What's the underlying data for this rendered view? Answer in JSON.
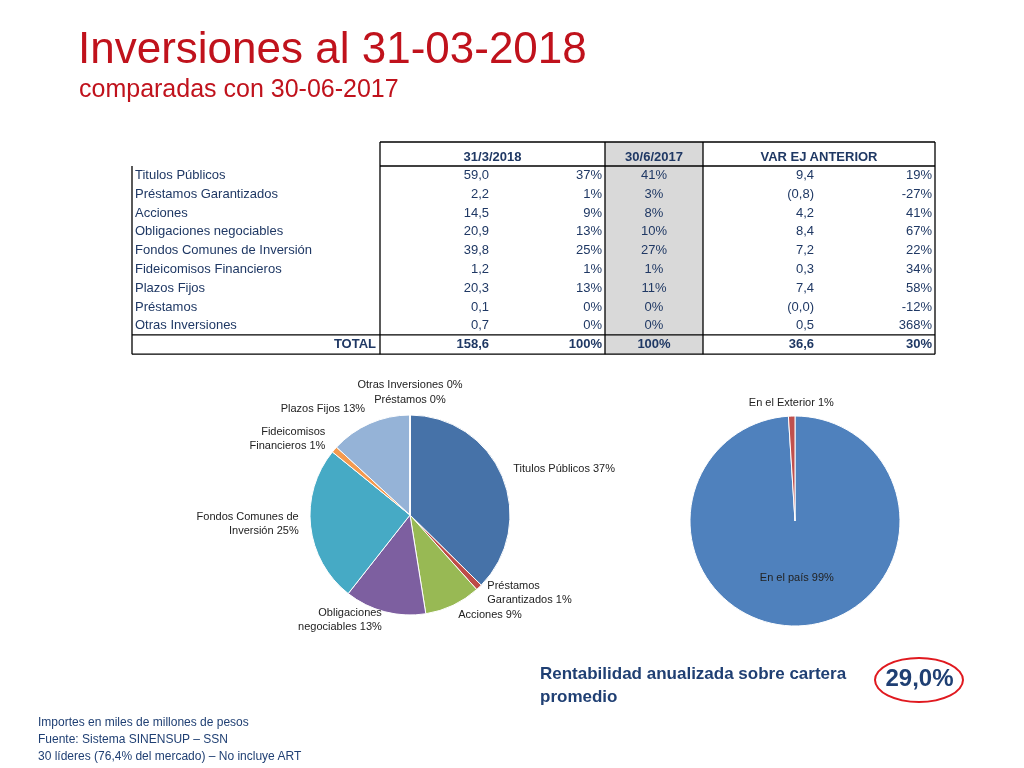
{
  "chart_data": [
    {
      "type": "other",
      "title": "Inversiones al 31-03-2018",
      "subtitle": "comparadas con 30-06-2017",
      "categories": [
        "Titulos Públicos",
        "Préstamos Garantizados",
        "Acciones",
        "Obligaciones negociables",
        "Fondos Comunes de Inversión",
        "Fideicomisos Financieros",
        "Plazos Fijos",
        "Préstamos",
        "Otras Inversiones",
        "TOTAL"
      ],
      "series": [
        {
          "name": "31/3/2018",
          "values": [
            59.0,
            2.2,
            14.5,
            20.9,
            39.8,
            1.2,
            20.3,
            0.1,
            0.7,
            158.6
          ],
          "value_labels": [
            "59,0",
            "2,2",
            "14,5",
            "20,9",
            "39,8",
            "1,2",
            "20,3",
            "0,1",
            "0,7",
            "158,6"
          ]
        },
        {
          "values": [
            37,
            1,
            9,
            13,
            25,
            1,
            13,
            0,
            0,
            100
          ],
          "value_labels": [
            "37%",
            "1%",
            "9%",
            "13%",
            "25%",
            "1%",
            "13%",
            "0%",
            "0%",
            "100%"
          ]
        },
        {
          "name": "30/6/2017",
          "values": [
            41,
            3,
            8,
            10,
            27,
            1,
            11,
            0,
            0,
            100
          ],
          "value_labels": [
            "41%",
            "3%",
            "8%",
            "10%",
            "27%",
            "1%",
            "11%",
            "0%",
            "0%",
            "100%"
          ]
        },
        {
          "name": "VAR EJ ANTERIOR",
          "values": [
            9.4,
            -0.8,
            4.2,
            8.4,
            7.2,
            0.3,
            7.4,
            0,
            0.5,
            36.6
          ],
          "value_labels": [
            "9,4",
            "(0,8)",
            "4,2",
            "8,4",
            "7,2",
            "0,3",
            "7,4",
            "(0,0)",
            "0,5",
            "36,6"
          ]
        },
        {
          "values": [
            19,
            -27,
            41,
            67,
            22,
            34,
            58,
            -12,
            368,
            30
          ],
          "value_labels": [
            "19%",
            "-27%",
            "41%",
            "67%",
            "22%",
            "34%",
            "58%",
            "-12%",
            "368%",
            "30%"
          ]
        }
      ]
    },
    {
      "type": "pie",
      "categories": [
        "Titulos Públicos",
        "Préstamos Garantizados",
        "Acciones",
        "Obligaciones negociables",
        "Fondos Comunes de Inversión",
        "Fideicomisos Financieros",
        "Plazos Fijos",
        "Préstamos",
        "Otras Inversiones"
      ],
      "values": [
        37,
        1,
        9,
        13,
        25,
        1,
        13,
        0,
        0
      ],
      "value_labels": [
        "37%",
        "1%",
        "9%",
        "13%",
        "25%",
        "1%",
        "13%",
        "0%",
        "0%"
      ],
      "colors": [
        "#4672a8",
        "#be4b48",
        "#98b954",
        "#7d5fa0",
        "#46aac5",
        "#f59a4e",
        "#95b3d7",
        "#d99694",
        "#c3d69b"
      ],
      "annotations": [
        "Importes en miles de millones de pesos",
        "Fuente: Sistema SINENSUP – SSN",
        "30 líderes (76,4% del mercado) – No incluye ART"
      ]
    },
    {
      "type": "pie",
      "categories": [
        "En el país",
        "En el Exterior"
      ],
      "values": [
        99,
        1
      ],
      "value_labels": [
        "99%",
        "1%"
      ],
      "colors": [
        "#4f81bd",
        "#c0504d"
      ],
      "annotations": [
        "Rentabilidad anualizada sobre cartera promedio",
        "29,0%"
      ]
    }
  ]
}
